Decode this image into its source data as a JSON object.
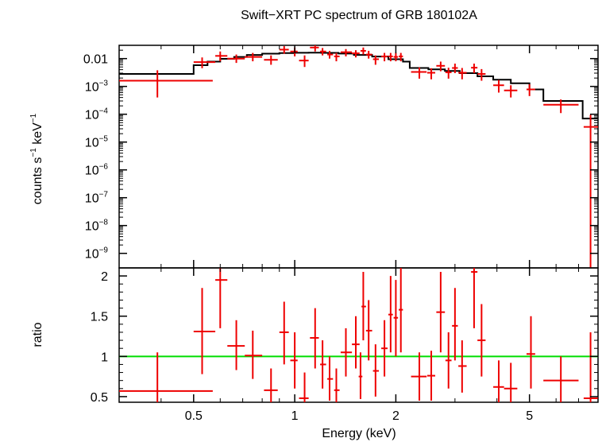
{
  "chart_data": {
    "title": "Swift−XRT PC spectrum of GRB 180102A",
    "xlabel": "Energy (keV)",
    "top_panel": {
      "type": "scatter",
      "ylabel_text": "counts s",
      "ylabel_sup1": "−1",
      "ylabel_mid": " keV",
      "ylabel_sup2": "−1",
      "y_scale": "log",
      "ylim": [
        3e-10,
        0.03
      ],
      "y_ticks": [
        {
          "base": "0.01",
          "exp": ""
        },
        {
          "base": "10",
          "exp": "−3"
        },
        {
          "base": "10",
          "exp": "−4"
        },
        {
          "base": "10",
          "exp": "−5"
        },
        {
          "base": "10",
          "exp": "−6"
        },
        {
          "base": "10",
          "exp": "−7"
        },
        {
          "base": "10",
          "exp": "−8"
        },
        {
          "base": "10",
          "exp": "−9"
        }
      ],
      "y_tick_values": [
        0.01,
        0.001,
        0.0001,
        1e-05,
        1e-06,
        1e-07,
        1e-08,
        1e-09
      ],
      "data": [
        {
          "x": 0.39,
          "xlo": 0.3,
          "xhi": 0.57,
          "y": 0.0016,
          "ylo": 0.0004,
          "yhi": 0.0038
        },
        {
          "x": 0.53,
          "xlo": 0.5,
          "xhi": 0.58,
          "y": 0.0075,
          "ylo": 0.0045,
          "yhi": 0.011
        },
        {
          "x": 0.6,
          "xlo": 0.58,
          "xhi": 0.63,
          "y": 0.0125,
          "ylo": 0.008,
          "yhi": 0.018
        },
        {
          "x": 0.67,
          "xlo": 0.63,
          "xhi": 0.71,
          "y": 0.01,
          "ylo": 0.007,
          "yhi": 0.014
        },
        {
          "x": 0.75,
          "xlo": 0.71,
          "xhi": 0.8,
          "y": 0.0115,
          "ylo": 0.008,
          "yhi": 0.016
        },
        {
          "x": 0.85,
          "xlo": 0.81,
          "xhi": 0.89,
          "y": 0.009,
          "ylo": 0.006,
          "yhi": 0.013
        },
        {
          "x": 0.93,
          "xlo": 0.9,
          "xhi": 0.96,
          "y": 0.021,
          "ylo": 0.015,
          "yhi": 0.028
        },
        {
          "x": 1.0,
          "xlo": 0.97,
          "xhi": 1.02,
          "y": 0.018,
          "ylo": 0.012,
          "yhi": 0.025
        },
        {
          "x": 1.07,
          "xlo": 1.03,
          "xhi": 1.1,
          "y": 0.0085,
          "ylo": 0.005,
          "yhi": 0.013
        },
        {
          "x": 1.15,
          "xlo": 1.11,
          "xhi": 1.18,
          "y": 0.025,
          "ylo": 0.018,
          "yhi": 0.032
        },
        {
          "x": 1.21,
          "xlo": 1.19,
          "xhi": 1.24,
          "y": 0.018,
          "ylo": 0.013,
          "yhi": 0.024
        },
        {
          "x": 1.27,
          "xlo": 1.25,
          "xhi": 1.3,
          "y": 0.014,
          "ylo": 0.01,
          "yhi": 0.019
        },
        {
          "x": 1.33,
          "xlo": 1.31,
          "xhi": 1.36,
          "y": 0.012,
          "ylo": 0.008,
          "yhi": 0.016
        },
        {
          "x": 1.42,
          "xlo": 1.37,
          "xhi": 1.48,
          "y": 0.017,
          "ylo": 0.012,
          "yhi": 0.022
        },
        {
          "x": 1.52,
          "xlo": 1.48,
          "xhi": 1.56,
          "y": 0.0155,
          "ylo": 0.011,
          "yhi": 0.02
        },
        {
          "x": 1.6,
          "xlo": 1.57,
          "xhi": 1.63,
          "y": 0.019,
          "ylo": 0.014,
          "yhi": 0.025
        },
        {
          "x": 1.66,
          "xlo": 1.63,
          "xhi": 1.7,
          "y": 0.014,
          "ylo": 0.01,
          "yhi": 0.019
        },
        {
          "x": 1.74,
          "xlo": 1.71,
          "xhi": 1.78,
          "y": 0.0095,
          "ylo": 0.006,
          "yhi": 0.013
        },
        {
          "x": 1.85,
          "xlo": 1.81,
          "xhi": 1.89,
          "y": 0.012,
          "ylo": 0.008,
          "yhi": 0.016
        },
        {
          "x": 1.93,
          "xlo": 1.9,
          "xhi": 1.96,
          "y": 0.012,
          "ylo": 0.008,
          "yhi": 0.016
        },
        {
          "x": 2.0,
          "xlo": 1.97,
          "xhi": 2.03,
          "y": 0.0115,
          "ylo": 0.008,
          "yhi": 0.016
        },
        {
          "x": 2.07,
          "xlo": 2.04,
          "xhi": 2.1,
          "y": 0.012,
          "ylo": 0.008,
          "yhi": 0.016
        },
        {
          "x": 2.35,
          "xlo": 2.22,
          "xhi": 2.47,
          "y": 0.0033,
          "ylo": 0.0019,
          "yhi": 0.0048
        },
        {
          "x": 2.55,
          "xlo": 2.48,
          "xhi": 2.62,
          "y": 0.0031,
          "ylo": 0.0018,
          "yhi": 0.0045
        },
        {
          "x": 2.72,
          "xlo": 2.64,
          "xhi": 2.8,
          "y": 0.0055,
          "ylo": 0.0035,
          "yhi": 0.0078
        },
        {
          "x": 2.87,
          "xlo": 2.81,
          "xhi": 2.93,
          "y": 0.0032,
          "ylo": 0.0019,
          "yhi": 0.0047
        },
        {
          "x": 3.0,
          "xlo": 2.94,
          "xhi": 3.06,
          "y": 0.0046,
          "ylo": 0.003,
          "yhi": 0.0066
        },
        {
          "x": 3.15,
          "xlo": 3.07,
          "xhi": 3.25,
          "y": 0.0031,
          "ylo": 0.0018,
          "yhi": 0.0046
        },
        {
          "x": 3.42,
          "xlo": 3.35,
          "xhi": 3.5,
          "y": 0.0047,
          "ylo": 0.003,
          "yhi": 0.0066
        },
        {
          "x": 3.6,
          "xlo": 3.5,
          "xhi": 3.7,
          "y": 0.0028,
          "ylo": 0.0016,
          "yhi": 0.0042
        },
        {
          "x": 4.05,
          "xlo": 3.9,
          "xhi": 4.2,
          "y": 0.0011,
          "ylo": 0.0006,
          "yhi": 0.0017
        },
        {
          "x": 4.4,
          "xlo": 4.2,
          "xhi": 4.6,
          "y": 0.00072,
          "ylo": 0.0004,
          "yhi": 0.0011
        },
        {
          "x": 5.0,
          "xlo": 4.9,
          "xhi": 5.2,
          "y": 0.00078,
          "ylo": 0.00045,
          "yhi": 0.0012
        },
        {
          "x": 6.2,
          "xlo": 5.5,
          "xhi": 7.0,
          "y": 0.00022,
          "ylo": 0.00011,
          "yhi": 0.00034
        },
        {
          "x": 7.6,
          "xlo": 7.25,
          "xhi": 8.0,
          "y": 3.5e-05,
          "ylo": 3e-10,
          "yhi": 9.5e-05
        }
      ],
      "model": [
        {
          "x0": 0.3,
          "x1": 0.5,
          "y": 0.0028
        },
        {
          "x0": 0.5,
          "x1": 0.55,
          "y": 0.0058
        },
        {
          "x0": 0.55,
          "x1": 0.6,
          "y": 0.0078
        },
        {
          "x0": 0.6,
          "x1": 0.66,
          "y": 0.0098
        },
        {
          "x0": 0.66,
          "x1": 0.72,
          "y": 0.0115
        },
        {
          "x0": 0.72,
          "x1": 0.8,
          "y": 0.0135
        },
        {
          "x0": 0.8,
          "x1": 0.9,
          "y": 0.015
        },
        {
          "x0": 0.9,
          "x1": 1.0,
          "y": 0.0158
        },
        {
          "x0": 1.0,
          "x1": 1.1,
          "y": 0.0162
        },
        {
          "x0": 1.1,
          "x1": 1.2,
          "y": 0.0163
        },
        {
          "x0": 1.2,
          "x1": 1.35,
          "y": 0.016
        },
        {
          "x0": 1.35,
          "x1": 1.5,
          "y": 0.0152
        },
        {
          "x0": 1.5,
          "x1": 1.7,
          "y": 0.0135
        },
        {
          "x0": 1.7,
          "x1": 1.9,
          "y": 0.0118
        },
        {
          "x0": 1.9,
          "x1": 2.1,
          "y": 0.0095
        },
        {
          "x0": 2.1,
          "x1": 2.2,
          "y": 0.0078
        },
        {
          "x0": 2.2,
          "x1": 2.5,
          "y": 0.0046
        },
        {
          "x0": 2.5,
          "x1": 2.8,
          "y": 0.0041
        },
        {
          "x0": 2.8,
          "x1": 3.1,
          "y": 0.0036
        },
        {
          "x0": 3.1,
          "x1": 3.5,
          "y": 0.003
        },
        {
          "x0": 3.5,
          "x1": 3.9,
          "y": 0.0023
        },
        {
          "x0": 3.9,
          "x1": 4.4,
          "y": 0.00175
        },
        {
          "x0": 4.4,
          "x1": 5.0,
          "y": 0.0013
        },
        {
          "x0": 5.0,
          "x1": 5.5,
          "y": 0.00078
        },
        {
          "x0": 5.5,
          "x1": 7.2,
          "y": 0.0003
        },
        {
          "x0": 7.2,
          "x1": 8.0,
          "y": 7e-05
        }
      ]
    },
    "bottom_panel": {
      "type": "scatter",
      "ylabel": "ratio",
      "ylim": [
        0.43,
        2.1
      ],
      "y_ticks": [
        "0.5",
        "1",
        "1.5",
        "2"
      ],
      "y_tick_values": [
        0.5,
        1.0,
        1.5,
        2.0
      ],
      "reference_line": 1.0,
      "data": [
        {
          "x": 0.39,
          "xlo": 0.3,
          "xhi": 0.57,
          "y": 0.57,
          "ylo": 0.43,
          "yhi": 1.05
        },
        {
          "x": 0.53,
          "xlo": 0.5,
          "xhi": 0.58,
          "y": 1.31,
          "ylo": 0.78,
          "yhi": 1.85
        },
        {
          "x": 0.6,
          "xlo": 0.58,
          "xhi": 0.63,
          "y": 1.95,
          "ylo": 1.35,
          "yhi": 2.1
        },
        {
          "x": 0.67,
          "xlo": 0.63,
          "xhi": 0.71,
          "y": 1.13,
          "ylo": 0.83,
          "yhi": 1.45
        },
        {
          "x": 0.75,
          "xlo": 0.71,
          "xhi": 0.8,
          "y": 1.01,
          "ylo": 0.72,
          "yhi": 1.32
        },
        {
          "x": 0.85,
          "xlo": 0.81,
          "xhi": 0.89,
          "y": 0.58,
          "ylo": 0.43,
          "yhi": 0.85
        },
        {
          "x": 0.93,
          "xlo": 0.9,
          "xhi": 0.96,
          "y": 1.3,
          "ylo": 0.9,
          "yhi": 1.68
        },
        {
          "x": 1.0,
          "xlo": 0.97,
          "xhi": 1.02,
          "y": 0.95,
          "ylo": 0.6,
          "yhi": 1.3
        },
        {
          "x": 1.07,
          "xlo": 1.03,
          "xhi": 1.1,
          "y": 0.48,
          "ylo": 0.43,
          "yhi": 0.8
        },
        {
          "x": 1.15,
          "xlo": 1.11,
          "xhi": 1.18,
          "y": 1.23,
          "ylo": 0.85,
          "yhi": 1.6
        },
        {
          "x": 1.21,
          "xlo": 1.19,
          "xhi": 1.24,
          "y": 0.9,
          "ylo": 0.6,
          "yhi": 1.2
        },
        {
          "x": 1.27,
          "xlo": 1.25,
          "xhi": 1.3,
          "y": 0.72,
          "ylo": 0.45,
          "yhi": 1.0
        },
        {
          "x": 1.33,
          "xlo": 1.31,
          "xhi": 1.36,
          "y": 0.58,
          "ylo": 0.43,
          "yhi": 0.85
        },
        {
          "x": 1.42,
          "xlo": 1.37,
          "xhi": 1.48,
          "y": 1.05,
          "ylo": 0.75,
          "yhi": 1.35
        },
        {
          "x": 1.52,
          "xlo": 1.48,
          "xhi": 1.56,
          "y": 1.15,
          "ylo": 0.85,
          "yhi": 1.5
        },
        {
          "x": 1.57,
          "xlo": 1.55,
          "xhi": 1.59,
          "y": 0.75,
          "ylo": 0.47,
          "yhi": 1.05
        },
        {
          "x": 1.6,
          "xlo": 1.58,
          "xhi": 1.63,
          "y": 1.62,
          "ylo": 1.2,
          "yhi": 2.05
        },
        {
          "x": 1.66,
          "xlo": 1.63,
          "xhi": 1.7,
          "y": 1.32,
          "ylo": 0.95,
          "yhi": 1.7
        },
        {
          "x": 1.74,
          "xlo": 1.71,
          "xhi": 1.78,
          "y": 0.82,
          "ylo": 0.5,
          "yhi": 1.15
        },
        {
          "x": 1.85,
          "xlo": 1.81,
          "xhi": 1.89,
          "y": 1.1,
          "ylo": 0.75,
          "yhi": 1.45
        },
        {
          "x": 1.93,
          "xlo": 1.9,
          "xhi": 1.96,
          "y": 1.52,
          "ylo": 1.05,
          "yhi": 2.0
        },
        {
          "x": 2.0,
          "xlo": 1.97,
          "xhi": 2.03,
          "y": 1.48,
          "ylo": 1.0,
          "yhi": 1.95
        },
        {
          "x": 2.07,
          "xlo": 2.04,
          "xhi": 2.1,
          "y": 1.58,
          "ylo": 1.05,
          "yhi": 2.1
        },
        {
          "x": 2.35,
          "xlo": 2.22,
          "xhi": 2.47,
          "y": 0.75,
          "ylo": 0.45,
          "yhi": 1.05
        },
        {
          "x": 2.55,
          "xlo": 2.48,
          "xhi": 2.62,
          "y": 0.76,
          "ylo": 0.45,
          "yhi": 1.07
        },
        {
          "x": 2.72,
          "xlo": 2.64,
          "xhi": 2.8,
          "y": 1.55,
          "ylo": 1.05,
          "yhi": 2.05
        },
        {
          "x": 2.87,
          "xlo": 2.81,
          "xhi": 2.93,
          "y": 0.95,
          "ylo": 0.6,
          "yhi": 1.3
        },
        {
          "x": 3.0,
          "xlo": 2.94,
          "xhi": 3.06,
          "y": 1.38,
          "ylo": 0.95,
          "yhi": 1.85
        },
        {
          "x": 3.15,
          "xlo": 3.07,
          "xhi": 3.25,
          "y": 0.88,
          "ylo": 0.55,
          "yhi": 1.2
        },
        {
          "x": 3.42,
          "xlo": 3.35,
          "xhi": 3.5,
          "y": 2.05,
          "ylo": 1.35,
          "yhi": 2.1
        },
        {
          "x": 3.6,
          "xlo": 3.5,
          "xhi": 3.7,
          "y": 1.2,
          "ylo": 0.75,
          "yhi": 1.65
        },
        {
          "x": 4.05,
          "xlo": 3.9,
          "xhi": 4.2,
          "y": 0.62,
          "ylo": 0.43,
          "yhi": 0.95
        },
        {
          "x": 4.4,
          "xlo": 4.2,
          "xhi": 4.6,
          "y": 0.6,
          "ylo": 0.43,
          "yhi": 0.92
        },
        {
          "x": 5.05,
          "xlo": 4.9,
          "xhi": 5.2,
          "y": 1.03,
          "ylo": 0.6,
          "yhi": 1.5
        },
        {
          "x": 6.2,
          "xlo": 5.5,
          "xhi": 7.0,
          "y": 0.7,
          "ylo": 0.43,
          "yhi": 1.0
        },
        {
          "x": 7.6,
          "xlo": 7.25,
          "xhi": 8.0,
          "y": 0.48,
          "ylo": 0.43,
          "yhi": 1.3
        }
      ]
    },
    "x_axis": {
      "scale": "log",
      "xlim": [
        0.3,
        8.0
      ],
      "ticks": [
        {
          "value": 0.5,
          "label": "0.5"
        },
        {
          "value": 1,
          "label": "1"
        },
        {
          "value": 2,
          "label": "2"
        },
        {
          "value": 5,
          "label": "5"
        }
      ],
      "minor_ticks": [
        0.3,
        0.4,
        0.6,
        0.7,
        0.8,
        0.9,
        3,
        4,
        6,
        7,
        8
      ]
    },
    "colors": {
      "data": "#ee0000",
      "model": "#000000",
      "reference": "#00dd00",
      "axes": "#000000"
    }
  }
}
